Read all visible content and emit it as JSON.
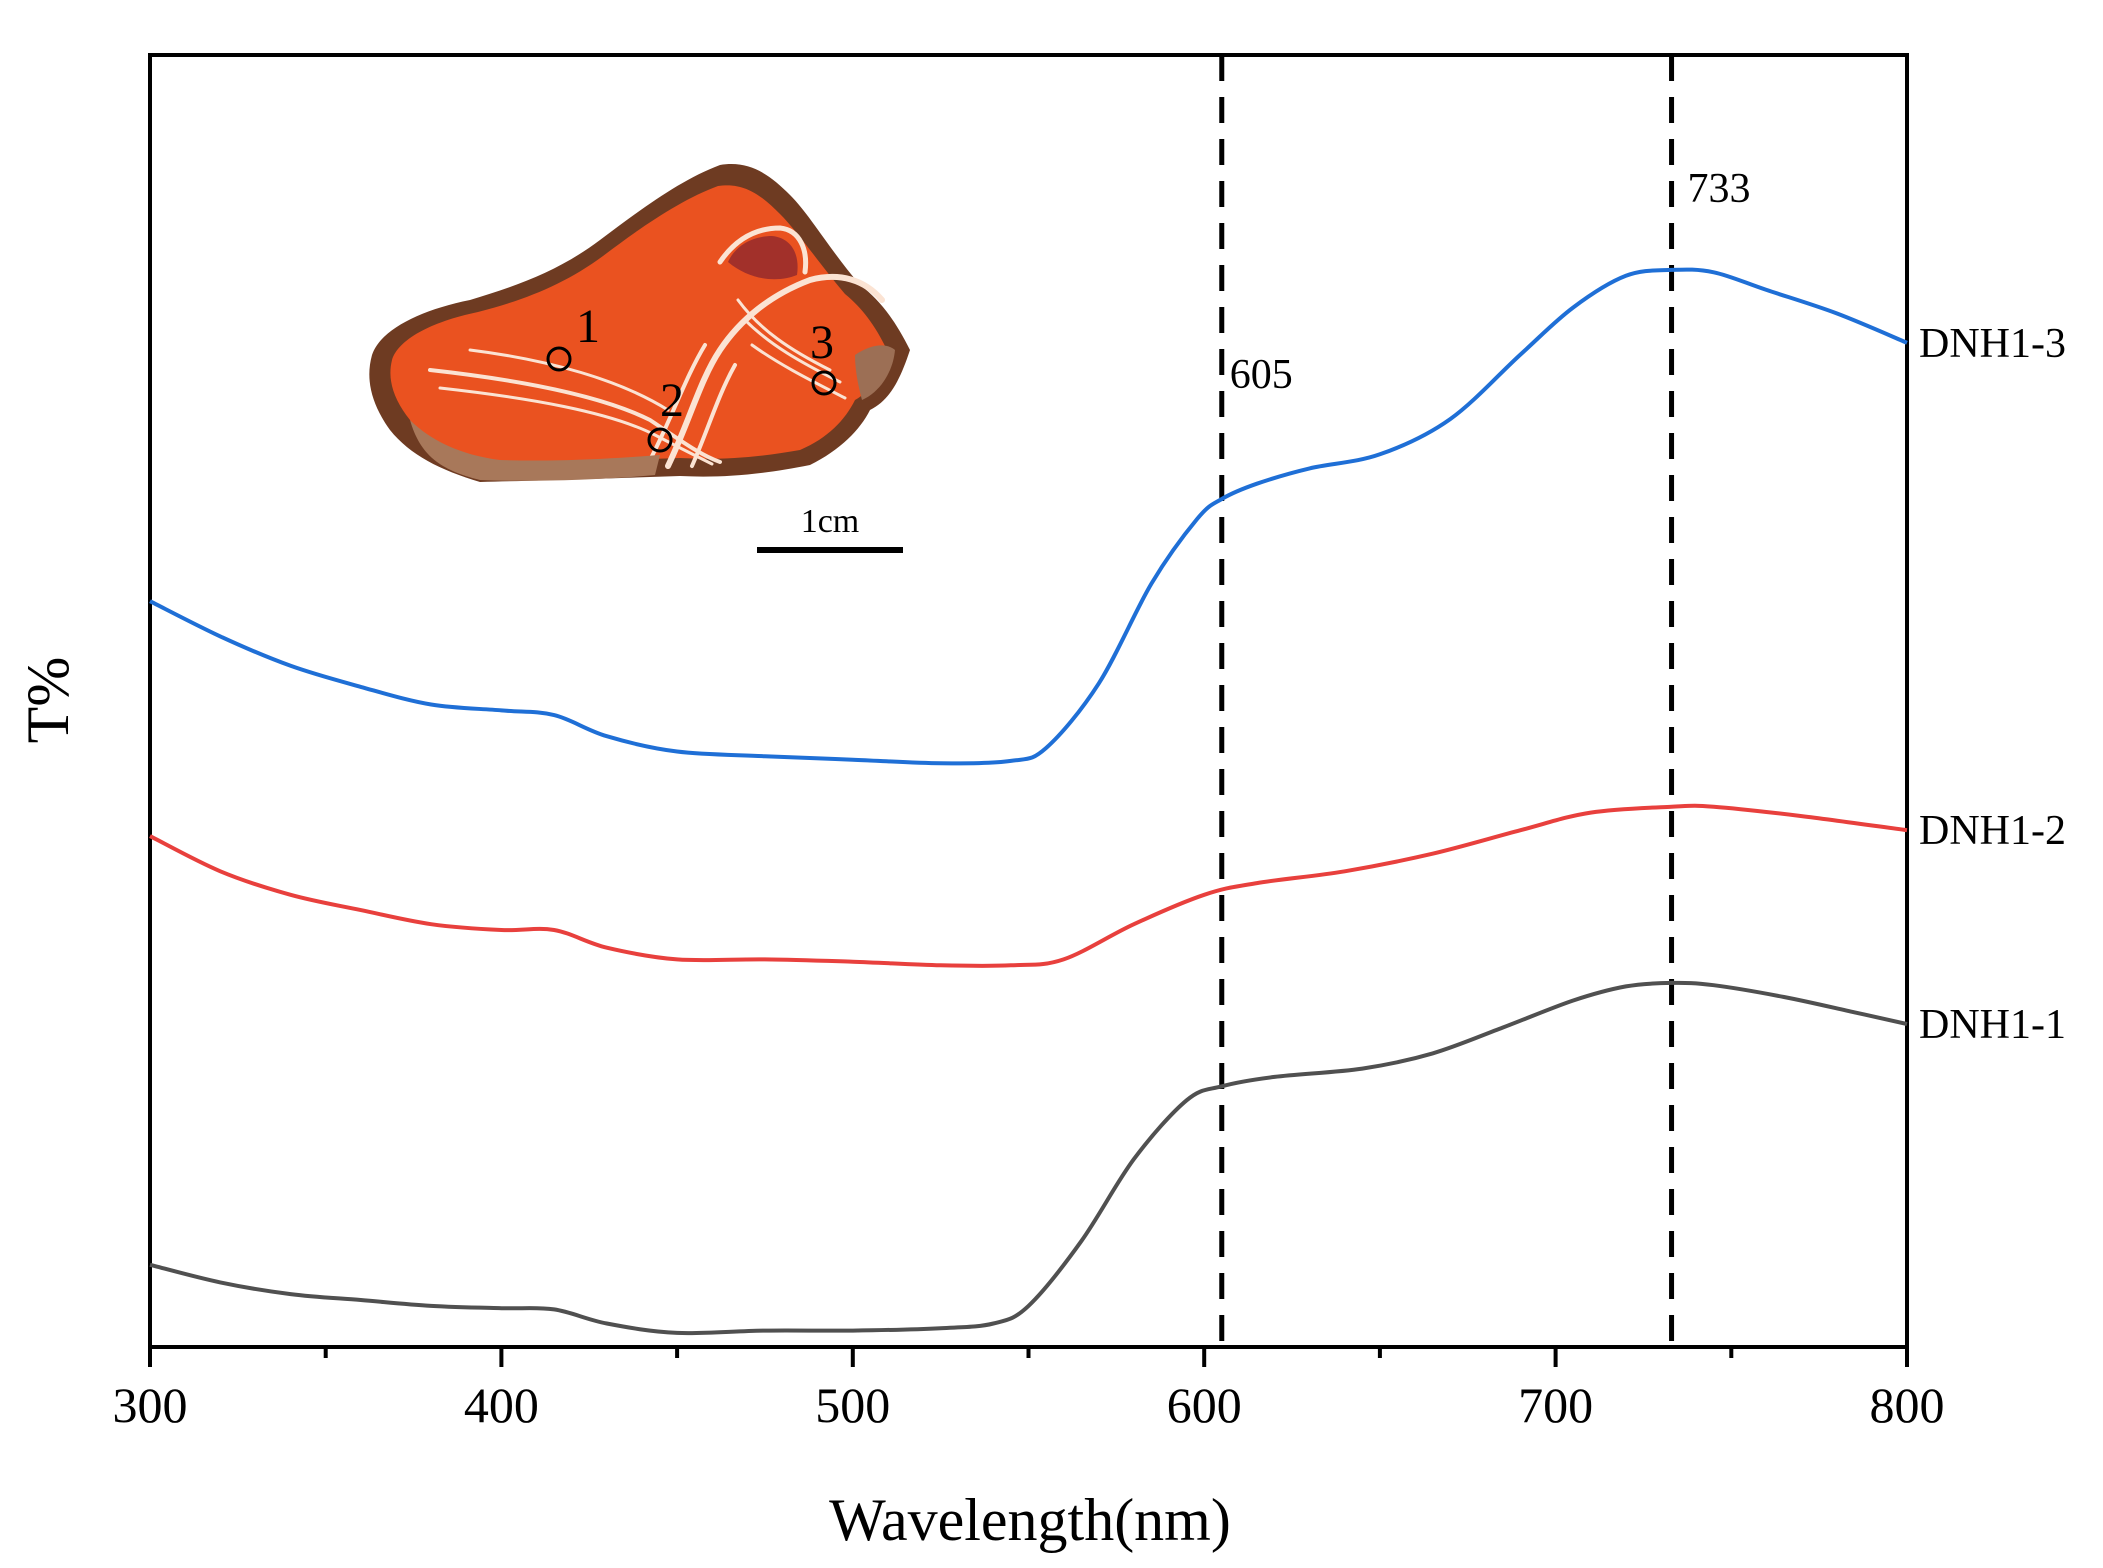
{
  "chart_data": {
    "type": "line",
    "xlabel": "Wavelength(nm)",
    "ylabel": "T%",
    "xlim": [
      300,
      800
    ],
    "x_ticks": [
      300,
      400,
      500,
      600,
      700,
      800
    ],
    "x_minor_ticks": [
      350,
      450,
      550,
      650,
      750
    ],
    "y_ticks_shown": false,
    "grid": false,
    "reference_lines": [
      {
        "x": 605,
        "label": "605",
        "style": "dashed"
      },
      {
        "x": 733,
        "label": "733",
        "style": "dashed"
      }
    ],
    "series": [
      {
        "name": "DNH1-3",
        "color": "#1f6fd6",
        "points": [
          [
            300,
            6.35
          ],
          [
            320,
            6.05
          ],
          [
            340,
            5.8
          ],
          [
            360,
            5.62
          ],
          [
            380,
            5.47
          ],
          [
            400,
            5.42
          ],
          [
            415,
            5.38
          ],
          [
            430,
            5.2
          ],
          [
            450,
            5.07
          ],
          [
            475,
            5.03
          ],
          [
            500,
            5.0
          ],
          [
            525,
            4.97
          ],
          [
            545,
            4.99
          ],
          [
            555,
            5.1
          ],
          [
            570,
            5.65
          ],
          [
            585,
            6.5
          ],
          [
            598,
            7.05
          ],
          [
            605,
            7.22
          ],
          [
            615,
            7.35
          ],
          [
            630,
            7.48
          ],
          [
            650,
            7.6
          ],
          [
            670,
            7.9
          ],
          [
            690,
            8.45
          ],
          [
            705,
            8.85
          ],
          [
            720,
            9.12
          ],
          [
            733,
            9.17
          ],
          [
            745,
            9.15
          ],
          [
            760,
            9.0
          ],
          [
            780,
            8.8
          ],
          [
            800,
            8.55
          ]
        ]
      },
      {
        "name": "DNH1-2",
        "color": "#e8403d",
        "points": [
          [
            300,
            4.35
          ],
          [
            320,
            4.05
          ],
          [
            340,
            3.85
          ],
          [
            360,
            3.72
          ],
          [
            380,
            3.6
          ],
          [
            400,
            3.55
          ],
          [
            415,
            3.55
          ],
          [
            430,
            3.4
          ],
          [
            450,
            3.3
          ],
          [
            475,
            3.3
          ],
          [
            500,
            3.28
          ],
          [
            525,
            3.25
          ],
          [
            545,
            3.25
          ],
          [
            560,
            3.3
          ],
          [
            580,
            3.6
          ],
          [
            600,
            3.85
          ],
          [
            615,
            3.95
          ],
          [
            640,
            4.05
          ],
          [
            665,
            4.2
          ],
          [
            690,
            4.4
          ],
          [
            710,
            4.55
          ],
          [
            733,
            4.6
          ],
          [
            745,
            4.6
          ],
          [
            770,
            4.52
          ],
          [
            800,
            4.4
          ]
        ]
      },
      {
        "name": "DNH1-1",
        "color": "#505050",
        "points": [
          [
            300,
            0.7
          ],
          [
            320,
            0.55
          ],
          [
            340,
            0.45
          ],
          [
            360,
            0.4
          ],
          [
            380,
            0.35
          ],
          [
            400,
            0.33
          ],
          [
            415,
            0.32
          ],
          [
            430,
            0.2
          ],
          [
            450,
            0.12
          ],
          [
            475,
            0.14
          ],
          [
            500,
            0.14
          ],
          [
            525,
            0.16
          ],
          [
            540,
            0.2
          ],
          [
            550,
            0.35
          ],
          [
            565,
            0.9
          ],
          [
            580,
            1.6
          ],
          [
            595,
            2.1
          ],
          [
            605,
            2.22
          ],
          [
            620,
            2.3
          ],
          [
            645,
            2.37
          ],
          [
            665,
            2.5
          ],
          [
            685,
            2.72
          ],
          [
            705,
            2.95
          ],
          [
            720,
            3.07
          ],
          [
            733,
            3.1
          ],
          [
            745,
            3.08
          ],
          [
            765,
            2.98
          ],
          [
            785,
            2.85
          ],
          [
            800,
            2.75
          ]
        ]
      }
    ]
  },
  "inset": {
    "description_labels": [
      "1",
      "2",
      "3"
    ],
    "scale_bar_label": "1cm"
  },
  "colors": {
    "axis": "#000000",
    "agate_base": "#e8501e",
    "agate_band": "#fbe3d3",
    "agate_dark": "#7a3a1c"
  }
}
